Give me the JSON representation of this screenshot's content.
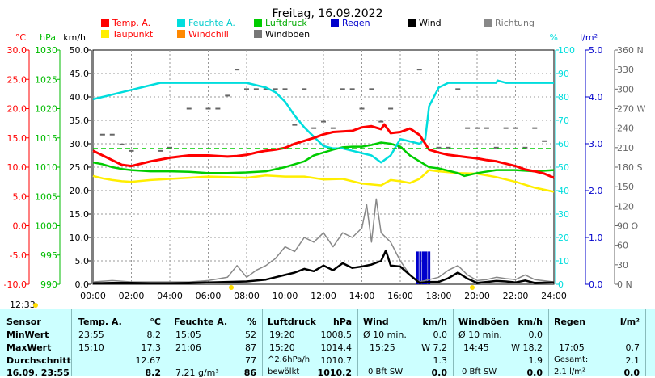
{
  "chart_data": {
    "type": "line",
    "title": "Freitag, 16.09.2022",
    "x_ticks": [
      "00:00",
      "02:00",
      "04:00",
      "06:00",
      "08:00",
      "10:00",
      "12:00",
      "14:00",
      "16:00",
      "18:00",
      "20:00",
      "22:00",
      "24:00"
    ],
    "axes": {
      "temp": {
        "unit": "°C",
        "ticks": [
          "30.0",
          "25.0",
          "20.0",
          "15.0",
          "10.0",
          "5.0",
          "0.0",
          "-5.0",
          "-10.0"
        ],
        "range": [
          -10,
          30
        ],
        "color": "#ff0000"
      },
      "pressure": {
        "unit": "hPa",
        "ticks": [
          "1030",
          "1025",
          "1020",
          "1015",
          "1010",
          "1005",
          "1000",
          "995",
          "990"
        ],
        "range": [
          990,
          1030
        ],
        "color": "#00bb00"
      },
      "wind": {
        "unit": "km/h",
        "ticks": [
          "50.0",
          "45.0",
          "40.0",
          "35.0",
          "30.0",
          "25.0",
          "20.0",
          "15.0",
          "10.0",
          "5.0",
          "0.0"
        ],
        "range": [
          0,
          50
        ],
        "color": "#000000"
      },
      "humidity": {
        "unit": "%",
        "ticks": [
          "100",
          "90",
          "80",
          "70",
          "60",
          "50",
          "40",
          "30",
          "20",
          "10",
          "0"
        ],
        "range": [
          0,
          100
        ],
        "color": "#00dddd"
      },
      "rain": {
        "unit": "l/m²",
        "ticks": [
          "5.0",
          "4.0",
          "3.0",
          "2.0",
          "1.0",
          "0.0"
        ],
        "range": [
          0,
          5
        ],
        "color": "#0000cc"
      },
      "direction": {
        "ticks": [
          "360 N",
          "330",
          "300",
          "270 W",
          "240",
          "210",
          "180 S",
          "150",
          "120",
          "90 O",
          "60",
          "30",
          "0   N"
        ],
        "range": [
          0,
          360
        ],
        "color": "#666666"
      }
    },
    "legend": [
      {
        "name": "Temp. A.",
        "color": "#ff0000"
      },
      {
        "name": "Feuchte A.",
        "color": "#00dddd"
      },
      {
        "name": "Luftdruck",
        "color": "#00cc00"
      },
      {
        "name": "Regen",
        "color": "#0000cc"
      },
      {
        "name": "Wind",
        "color": "#000000"
      },
      {
        "name": "Richtung",
        "color": "#888888"
      },
      {
        "name": "Taupunkt",
        "color": "#ffee00"
      },
      {
        "name": "Windchill",
        "color": "#ff8800"
      },
      {
        "name": "Windböen",
        "color": "#777777"
      }
    ],
    "series": [
      {
        "name": "Temp. A.",
        "axis": "temp",
        "color": "#ff0000",
        "x": [
          0,
          0.5,
          1,
          1.5,
          2,
          2.5,
          3,
          3.5,
          4,
          4.5,
          5,
          5.5,
          6,
          6.5,
          7,
          7.5,
          8,
          8.5,
          9,
          9.5,
          10,
          10.5,
          11,
          11.5,
          12,
          12.5,
          13,
          13.5,
          14,
          14.5,
          15,
          15.17,
          15.5,
          16,
          16.5,
          17,
          17.5,
          18,
          18.5,
          19,
          19.5,
          20,
          20.5,
          21,
          21.5,
          22,
          22.5,
          23,
          23.5,
          24
        ],
        "y": [
          12.8,
          12,
          11.2,
          10.4,
          10.2,
          10.6,
          11,
          11.3,
          11.6,
          11.8,
          12,
          12,
          12,
          11.9,
          11.8,
          11.9,
          12.1,
          12.5,
          12.8,
          13,
          13.3,
          14,
          14.5,
          15,
          15.6,
          16,
          16.1,
          16.2,
          16.8,
          17,
          16.5,
          17.3,
          15.8,
          16,
          16.6,
          15.5,
          13,
          12.5,
          12.1,
          11.9,
          11.7,
          11.5,
          11.2,
          11,
          10.6,
          10.2,
          9.6,
          9.3,
          8.9,
          8.2
        ]
      },
      {
        "name": "Feuchte A.",
        "axis": "humidity",
        "color": "#00dddd",
        "x": [
          0,
          0.5,
          1,
          1.5,
          2,
          2.5,
          3,
          3.5,
          4,
          4.5,
          5,
          5.5,
          6,
          6.5,
          7,
          7.5,
          8,
          8.5,
          9,
          9.5,
          10,
          10.5,
          11,
          11.5,
          12,
          12.5,
          13,
          13.5,
          14,
          14.5,
          15,
          15.5,
          16,
          16.5,
          17,
          17.3,
          17.5,
          18,
          18.5,
          19,
          19.5,
          20,
          20.5,
          21,
          21.06,
          21.5,
          22,
          22.5,
          23,
          23.5,
          24
        ],
        "y": [
          79,
          80,
          81,
          82,
          83,
          84,
          85,
          86,
          86,
          86,
          86,
          86,
          86,
          86,
          86,
          86,
          86,
          85,
          84,
          82,
          78,
          72,
          67,
          63,
          59,
          58,
          58,
          57,
          56,
          55,
          52,
          55,
          62,
          61,
          60,
          62,
          76,
          84,
          86,
          86,
          86,
          86,
          86,
          86,
          87,
          86,
          86,
          86,
          86,
          86,
          86
        ]
      },
      {
        "name": "Luftdruck",
        "axis": "pressure",
        "color": "#00cc00",
        "x": [
          0,
          0.5,
          1,
          1.5,
          2,
          3,
          4,
          5,
          6,
          7,
          8,
          9,
          10,
          11,
          11.5,
          12,
          12.5,
          13,
          13.5,
          14,
          14.5,
          15,
          15.5,
          16,
          16.5,
          17,
          17.5,
          18,
          19,
          19.33,
          20,
          21,
          22,
          23,
          24
        ],
        "y": [
          1010.8,
          1010.5,
          1010,
          1009.7,
          1009.5,
          1009.3,
          1009.3,
          1009.2,
          1009,
          1009,
          1009.1,
          1009.3,
          1010,
          1011,
          1012,
          1012.5,
          1013,
          1013.4,
          1013.5,
          1013.5,
          1013.8,
          1014.2,
          1014,
          1013.5,
          1012,
          1011,
          1010,
          1009.8,
          1009,
          1008.5,
          1009,
          1009.5,
          1009.5,
          1009.3,
          1009.5
        ]
      },
      {
        "name": "Taupunkt",
        "axis": "temp",
        "color": "#ffee00",
        "x": [
          0,
          0.5,
          1,
          1.5,
          2,
          3,
          4,
          5,
          6,
          7,
          8,
          9,
          10,
          11,
          12,
          13,
          14,
          15,
          15.5,
          16,
          16.5,
          17,
          17.5,
          18,
          19,
          20,
          21,
          22,
          23,
          24
        ],
        "y": [
          8.5,
          8.1,
          7.8,
          7.6,
          7.5,
          7.8,
          8,
          8.2,
          8.4,
          8.3,
          8.2,
          8.6,
          8.4,
          8.4,
          7.9,
          8,
          7.2,
          6.9,
          7.8,
          7.6,
          7.3,
          8,
          9.5,
          9.3,
          9,
          8.9,
          8.3,
          7.5,
          6.5,
          5.8
        ]
      },
      {
        "name": "Wind",
        "axis": "wind",
        "color": "#000000",
        "x": [
          0,
          1,
          2,
          3,
          4,
          5,
          6,
          7,
          8,
          8.5,
          9,
          9.5,
          10,
          10.5,
          11,
          11.5,
          12,
          12.5,
          13,
          13.5,
          14,
          14.5,
          15,
          15.25,
          15.5,
          16,
          16.5,
          17,
          17.5,
          18,
          18.5,
          19,
          19.5,
          20,
          20.5,
          21,
          21.5,
          22,
          22.5,
          23,
          24
        ],
        "y": [
          0.2,
          0.3,
          0.3,
          0.2,
          0.2,
          0.3,
          0.4,
          0.5,
          0.6,
          0.8,
          1,
          1.5,
          2,
          2.5,
          3.3,
          2.8,
          4,
          3,
          4.5,
          3.5,
          3.8,
          4.2,
          5,
          7.2,
          4,
          3.8,
          2,
          0.3,
          0.5,
          0.5,
          1.3,
          2.5,
          1.2,
          0.3,
          0.5,
          0.7,
          0.6,
          0.4,
          0.8,
          0.3,
          0.4
        ]
      },
      {
        "name": "Windböen",
        "axis": "wind",
        "color": "#888888",
        "x": [
          0,
          1,
          2,
          3,
          4,
          5,
          6,
          7,
          7.5,
          8,
          8.5,
          9,
          9.5,
          10,
          10.5,
          11,
          11.5,
          12,
          12.5,
          13,
          13.5,
          14,
          14.25,
          14.5,
          14.75,
          15,
          15.5,
          16,
          16.5,
          17,
          17.5,
          18,
          18.5,
          19,
          19.5,
          20,
          20.5,
          21,
          21.5,
          22,
          22.5,
          23,
          24
        ],
        "y": [
          0.5,
          0.8,
          0.5,
          0.5,
          0.5,
          0.5,
          0.8,
          1.5,
          4,
          1.5,
          3,
          4,
          5.5,
          8,
          7,
          10,
          9,
          11,
          8,
          11,
          10,
          12,
          17,
          9,
          18.2,
          11,
          9,
          5,
          2,
          0.5,
          1,
          1.5,
          3,
          4,
          2,
          0.8,
          1,
          1.5,
          1.2,
          1,
          2,
          1,
          0.5
        ]
      }
    ],
    "rain_bars": {
      "x": [
        16.9,
        17.05,
        17.2,
        17.35,
        17.5
      ],
      "y": [
        0.7,
        0.7,
        0.7,
        0.7,
        0.7
      ]
    },
    "direction_points": {
      "x": [
        0.5,
        1,
        1.5,
        2,
        3.5,
        4,
        5,
        6,
        6.5,
        7,
        7.5,
        8,
        8.5,
        9,
        9.5,
        10,
        10.5,
        11,
        11.5,
        12,
        12.5,
        13,
        13.5,
        14,
        14.5,
        15,
        15.5,
        16,
        17,
        18,
        18.5,
        19,
        19.5,
        20,
        20.5,
        21,
        21.5,
        22,
        22.5,
        23,
        23.5
      ],
      "y": [
        230,
        230,
        215,
        205,
        205,
        210,
        270,
        270,
        270,
        290,
        330,
        300,
        300,
        300,
        300,
        300,
        245,
        300,
        240,
        250,
        240,
        300,
        300,
        270,
        300,
        250,
        270,
        210,
        330,
        210,
        210,
        300,
        240,
        240,
        240,
        210,
        240,
        240,
        210,
        240,
        220
      ]
    },
    "dew_ref_line": {
      "temp": 13.2
    },
    "time_label": "12:33"
  },
  "table": {
    "headers": [
      "Sensor",
      "Temp. A.",
      "°C",
      "Feuchte A.",
      "%",
      "Luftdruck",
      "hPa",
      "Wind",
      "km/h",
      "Windböen",
      "km/h",
      "Regen",
      "l/m²"
    ],
    "rows": [
      {
        "label": "MinWert",
        "temp_time": "23:55",
        "temp_val": "8.2",
        "hum_time": "15:05",
        "hum_val": "52",
        "press_time": "19:20",
        "press_val": "1008.5",
        "wind_info": "Ø 10 min.",
        "wind_val": "0.0",
        "gust_info": "Ø 10 min.",
        "gust_val": "0.0",
        "rain_info": "",
        "rain_val": ""
      },
      {
        "label": "MaxWert",
        "temp_time": "15:10",
        "temp_val": "17.3",
        "hum_time": "21:06",
        "hum_val": "87",
        "press_time": "15:20",
        "press_val": "1014.4",
        "wind_info": "15:25",
        "wind_val": "W 7.2",
        "gust_info": "14:45",
        "gust_val": "W 18.2",
        "rain_info": "17:05",
        "rain_val": "0.7"
      },
      {
        "label": "Durchschnitt",
        "temp_time": "",
        "temp_val": "12.67",
        "hum_time": "",
        "hum_val": "77",
        "press_time": "^2.6hPa/h",
        "press_val": "1010.7",
        "wind_info": "",
        "wind_val": "1.3",
        "gust_info": "",
        "gust_val": "1.9",
        "rain_info": "Gesamt:",
        "rain_val": "2.1"
      },
      {
        "label": "16.09. 23:55",
        "temp_time": "",
        "temp_val": "8.2",
        "hum_time": "7.21 g/m³",
        "hum_val": "86",
        "press_time": "bewölkt",
        "press_val": "1010.2",
        "wind_info": "0 Bft SW",
        "wind_val": "0.0",
        "gust_info": "0 Bft SW",
        "gust_val": "0.0",
        "rain_info": "2.1 l/m²",
        "rain_val": "0.0"
      }
    ]
  }
}
